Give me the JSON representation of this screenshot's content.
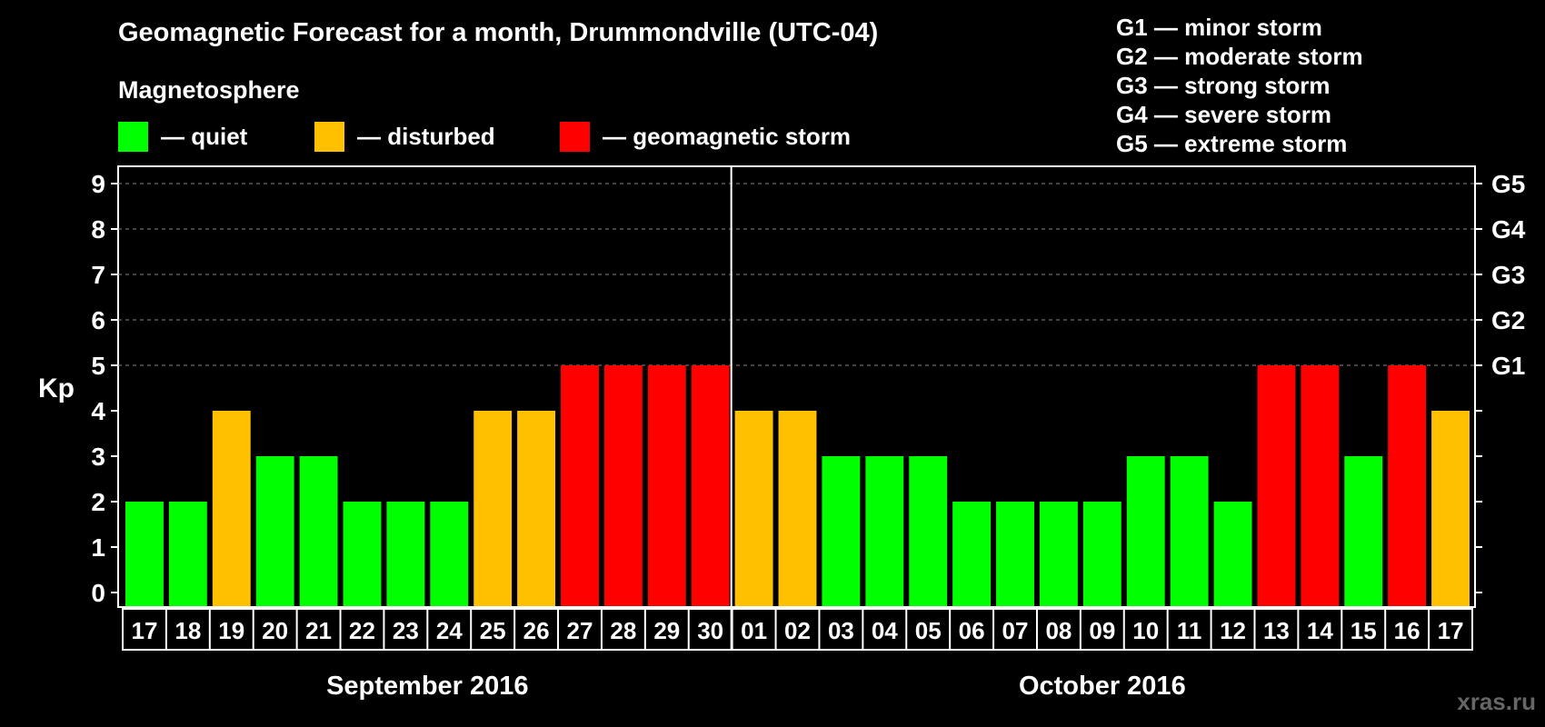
{
  "header": {
    "title": "Geomagnetic Forecast for a month, Drummondville (UTC-04)",
    "magnetosphere_label": "Magnetosphere",
    "legend": [
      {
        "label": "— quiet",
        "color": "#00ff00"
      },
      {
        "label": "— disturbed",
        "color": "#ffc000"
      },
      {
        "label": "— geomagnetic storm",
        "color": "#ff0000"
      }
    ]
  },
  "storm_levels": [
    "G1 — minor storm",
    "G2 — moderate storm",
    "G3 — strong storm",
    "G4 — severe storm",
    "G5 — extreme storm"
  ],
  "chart_data": {
    "type": "bar",
    "title": "Geomagnetic Forecast for a month, Drummondville (UTC-04)",
    "ylabel": "Kp",
    "ylim": [
      0,
      9
    ],
    "yticks": [
      "0",
      "1",
      "2",
      "3",
      "4",
      "5",
      "6",
      "7",
      "8",
      "9"
    ],
    "right_ticks": [
      {
        "kp": 5,
        "label": "G1"
      },
      {
        "kp": 6,
        "label": "G2"
      },
      {
        "kp": 7,
        "label": "G3"
      },
      {
        "kp": 8,
        "label": "G4"
      },
      {
        "kp": 9,
        "label": "G5"
      }
    ],
    "categories": [
      "17",
      "18",
      "19",
      "20",
      "21",
      "22",
      "23",
      "24",
      "25",
      "26",
      "27",
      "28",
      "29",
      "30",
      "01",
      "02",
      "03",
      "04",
      "05",
      "06",
      "07",
      "08",
      "09",
      "10",
      "11",
      "12",
      "13",
      "14",
      "15",
      "16",
      "17"
    ],
    "values": [
      2,
      2,
      4,
      3,
      3,
      2,
      2,
      2,
      4,
      4,
      5,
      5,
      5,
      5,
      4,
      4,
      3,
      3,
      3,
      2,
      2,
      2,
      2,
      3,
      3,
      2,
      5,
      5,
      3,
      5,
      4
    ],
    "months": [
      {
        "label": "September 2016",
        "start_index": 0,
        "end_index": 13
      },
      {
        "label": "October 2016",
        "start_index": 14,
        "end_index": 30
      }
    ],
    "colors": {
      "quiet": "#00ff00",
      "disturbed": "#ffc000",
      "storm": "#ff0000"
    },
    "thresholds": {
      "disturbed": 4,
      "storm": 5
    },
    "grid": "dashed at 5-9"
  },
  "watermark": "xras.ru"
}
